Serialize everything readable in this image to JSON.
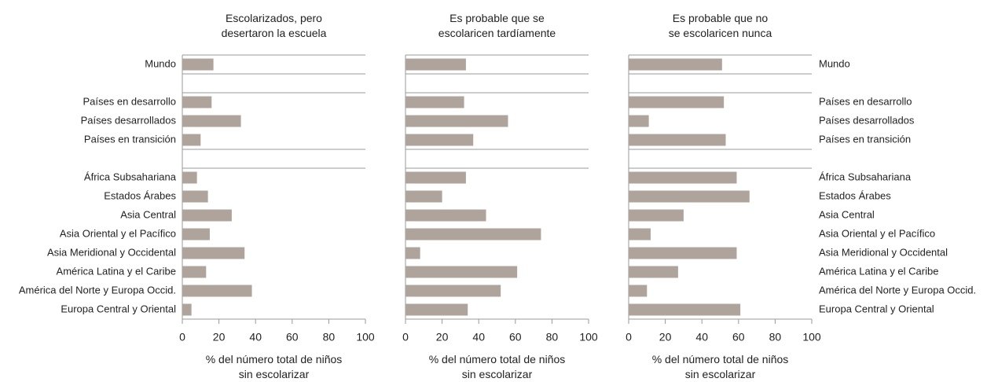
{
  "chart_data": [
    {
      "type": "bar",
      "orientation": "horizontal",
      "title": "Escolarizados, pero\ndesertaron la escuela",
      "categories": [
        "Mundo",
        null,
        "Países en desarrollo",
        "Países desarrollados",
        "Países en transición",
        null,
        "África Subsahariana",
        "Estados Árabes",
        "Asia Central",
        "Asia Oriental y el Pacífico",
        "Asia Meridional y Occidental",
        "América Latina y el Caribe",
        "América del Norte y Europa Occid.",
        "Europa Central y Oriental"
      ],
      "values": [
        17,
        null,
        16,
        32,
        10,
        null,
        8,
        14,
        27,
        15,
        34,
        13,
        38,
        5
      ],
      "color": "#aea49b",
      "xlim": [
        0,
        100
      ],
      "xticks": [
        0,
        20,
        40,
        60,
        80,
        100
      ],
      "xlabel": "% del número total de niños\nsin escolarizar"
    },
    {
      "type": "bar",
      "orientation": "horizontal",
      "title": "Es probable que se\nescolaricen tardíamente",
      "values": [
        33,
        null,
        32,
        56,
        37,
        null,
        33,
        20,
        44,
        74,
        8,
        61,
        52,
        34
      ],
      "color": "#aea49b",
      "xlim": [
        0,
        100
      ],
      "xticks": [
        0,
        20,
        40,
        60,
        80,
        100
      ],
      "xlabel": "% del número total de niños\nsin escolarizar"
    },
    {
      "type": "bar",
      "orientation": "horizontal",
      "title": "Es probable que no\nse escolaricen nunca",
      "categories": [
        "Mundo",
        null,
        "Países en desarrollo",
        "Países desarrollados",
        "Países en transición",
        null,
        "África Subsahariana",
        "Estados Árabes",
        "Asia Central",
        "Asia Oriental y el Pacífico",
        "Asia Meridional y Occidental",
        "América Latina y el Caribe",
        "América del Norte y Europa Occid.",
        "Europa Central y Oriental"
      ],
      "values": [
        51,
        null,
        52,
        11,
        53,
        null,
        59,
        66,
        30,
        12,
        59,
        27,
        10,
        61
      ],
      "color": "#aea49b",
      "xlim": [
        0,
        100
      ],
      "xticks": [
        0,
        20,
        40,
        60,
        80,
        100
      ],
      "xlabel": "% del número total de niños\nsin escolarizar"
    }
  ]
}
